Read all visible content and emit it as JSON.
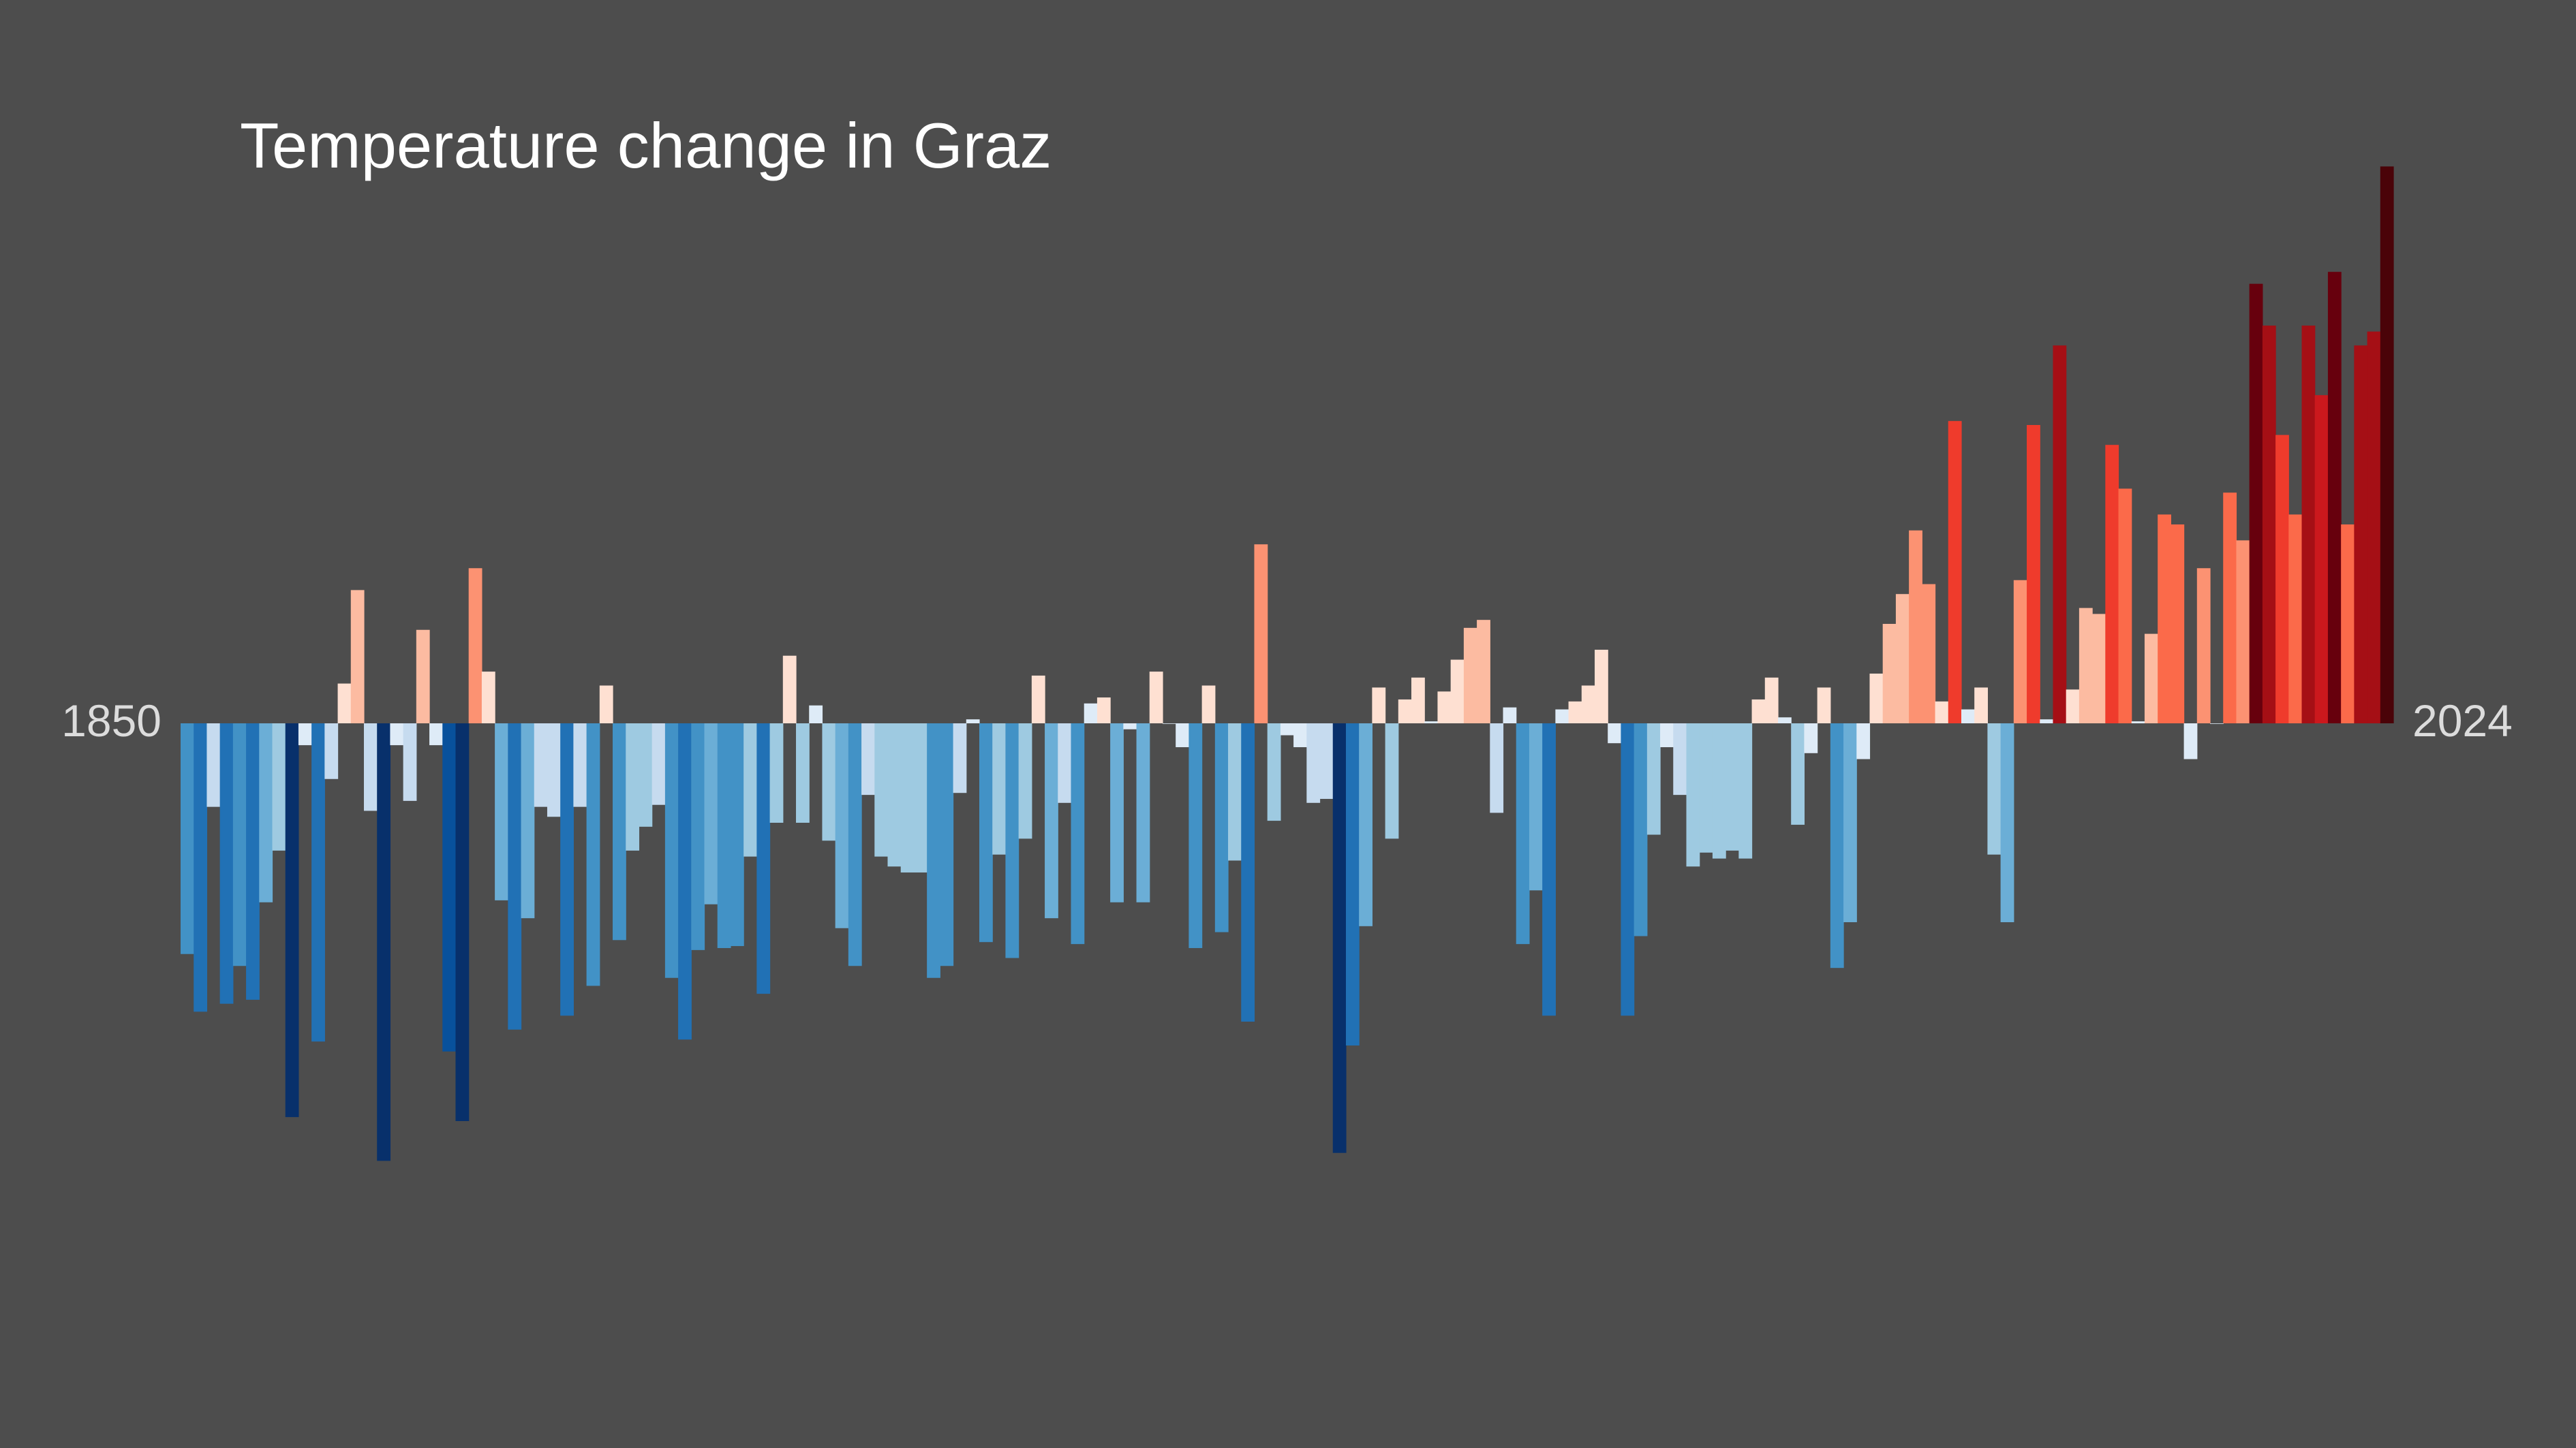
{
  "chart_data": {
    "type": "bar",
    "title": "Temperature change in Graz",
    "xlabel": "",
    "ylabel": "",
    "x_start_label": "1850",
    "x_end_label": "2024",
    "x_range": [
      1850,
      2024
    ],
    "ylim": [
      -2.2,
      2.7
    ],
    "grid": false,
    "legend": "none",
    "colors": {
      "background": "#4d4d4d",
      "title": "#ffffff",
      "axis_label": "#dcdcdc",
      "colormap": [
        "#08306b",
        "#08519c",
        "#2171b5",
        "#4292c6",
        "#6baed6",
        "#9ecae1",
        "#c6dbef",
        "#deebf7",
        "#fee0d2",
        "#fcbba1",
        "#fc9272",
        "#fb6a4a",
        "#ef3b2c",
        "#cb181d",
        "#a50f15",
        "#67000d",
        "#4a0308"
      ]
    },
    "values": [
      -1.16,
      -1.45,
      -0.42,
      -1.41,
      -1.22,
      -1.39,
      -0.9,
      -0.64,
      -1.98,
      -0.11,
      -1.6,
      -0.28,
      0.2,
      0.67,
      -0.44,
      -2.2,
      -0.11,
      -0.39,
      0.47,
      -0.11,
      -1.65,
      -2.0,
      0.78,
      0.26,
      -0.89,
      -1.54,
      -0.98,
      -0.42,
      -0.47,
      -1.47,
      -0.42,
      -1.32,
      0.19,
      -1.09,
      -0.64,
      -0.52,
      -0.41,
      -1.28,
      -1.59,
      -1.14,
      -0.91,
      -1.13,
      -1.12,
      -0.67,
      -1.36,
      -0.5,
      0.34,
      -0.5,
      0.09,
      -0.59,
      -1.03,
      -1.22,
      -0.36,
      -0.67,
      -0.72,
      -0.75,
      -0.75,
      -1.28,
      -1.22,
      -0.35,
      0.02,
      -1.1,
      -0.66,
      -1.18,
      -0.58,
      0.24,
      -0.98,
      -0.4,
      -1.11,
      0.1,
      0.13,
      -0.9,
      -0.03,
      -0.9,
      0.26,
      0.0,
      -0.12,
      -1.13,
      0.19,
      -1.05,
      -0.69,
      -1.5,
      0.9,
      -0.49,
      -0.06,
      -0.12,
      -0.4,
      -0.38,
      -2.16,
      -1.62,
      -1.02,
      0.18,
      -0.58,
      0.12,
      0.23,
      0.01,
      0.16,
      0.32,
      0.48,
      0.52,
      -0.45,
      0.08,
      -1.11,
      -0.84,
      -1.47,
      0.07,
      0.11,
      0.19,
      0.37,
      -0.1,
      -1.47,
      -1.07,
      -0.56,
      -0.12,
      -0.36,
      -0.72,
      -0.65,
      -0.68,
      -0.64,
      -0.68,
      0.12,
      0.23,
      0.03,
      -0.51,
      -0.15,
      0.18,
      -1.23,
      -1.0,
      -0.18,
      0.25,
      0.5,
      0.65,
      0.97,
      0.7,
      0.11,
      1.52,
      0.07,
      0.18,
      -0.66,
      -1.0,
      0.72,
      1.5,
      0.02,
      1.9,
      0.17,
      0.58,
      0.55,
      1.4,
      1.18,
      0.01,
      0.45,
      1.05,
      1.0,
      -0.18,
      0.78,
      0.0,
      1.16,
      0.92,
      2.21,
      2.0,
      1.45,
      1.05,
      2.0,
      1.65,
      2.27,
      1.0,
      1.9,
      1.97,
      2.8
    ]
  }
}
